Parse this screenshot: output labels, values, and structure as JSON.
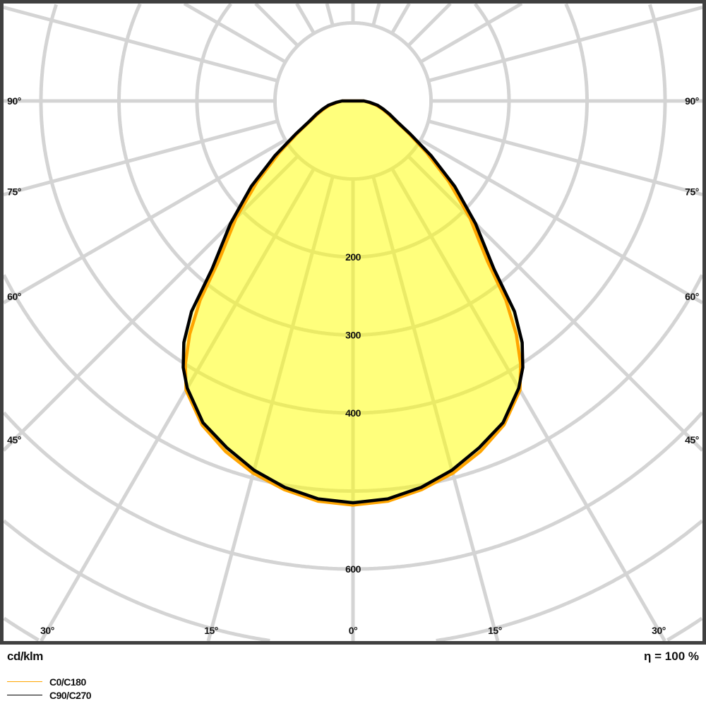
{
  "chart_data": {
    "type": "polar-line",
    "unit_label": "cd/klm",
    "efficiency_label": "η = 100 %",
    "radial_ticks": [
      100,
      200,
      300,
      400,
      500,
      600,
      700,
      800,
      900,
      1000
    ],
    "radial_tick_labels": [
      "200",
      "300",
      "400",
      "600"
    ],
    "radial_tick_label_values": [
      200,
      300,
      400,
      600
    ],
    "angle_grid_step_deg": 15,
    "angle_labels_left": [
      "90°",
      "75°",
      "60°",
      "45°"
    ],
    "angle_labels_right": [
      "90°",
      "75°",
      "60°",
      "45°"
    ],
    "angle_labels_bottom": [
      "30°",
      "15°",
      "0°",
      "15°",
      "30°"
    ],
    "grid": true,
    "fill_color": "#ffff00",
    "legend_placement": "bottom-left",
    "angles_deg": [
      0,
      5,
      10,
      15,
      20,
      25,
      30,
      32.5,
      35,
      37.5,
      40,
      45,
      50,
      55,
      60,
      65,
      70,
      75,
      80,
      85,
      90
    ],
    "series": [
      {
        "name": "C0/C180",
        "color": "#ffa500",
        "values": [
          518,
          515,
          506,
          494,
          478,
          458,
          428,
          400,
          365,
          322,
          268,
          212,
          160,
          115,
          82,
          60,
          48,
          38,
          30,
          20,
          14
        ]
      },
      {
        "name": "C90/C270",
        "color": "#000000",
        "values": [
          515,
          512,
          503,
          490,
          473,
          455,
          425,
          405,
          378,
          340,
          281,
          222,
          170,
          122,
          85,
          62,
          50,
          40,
          32,
          22,
          14
        ]
      }
    ]
  }
}
